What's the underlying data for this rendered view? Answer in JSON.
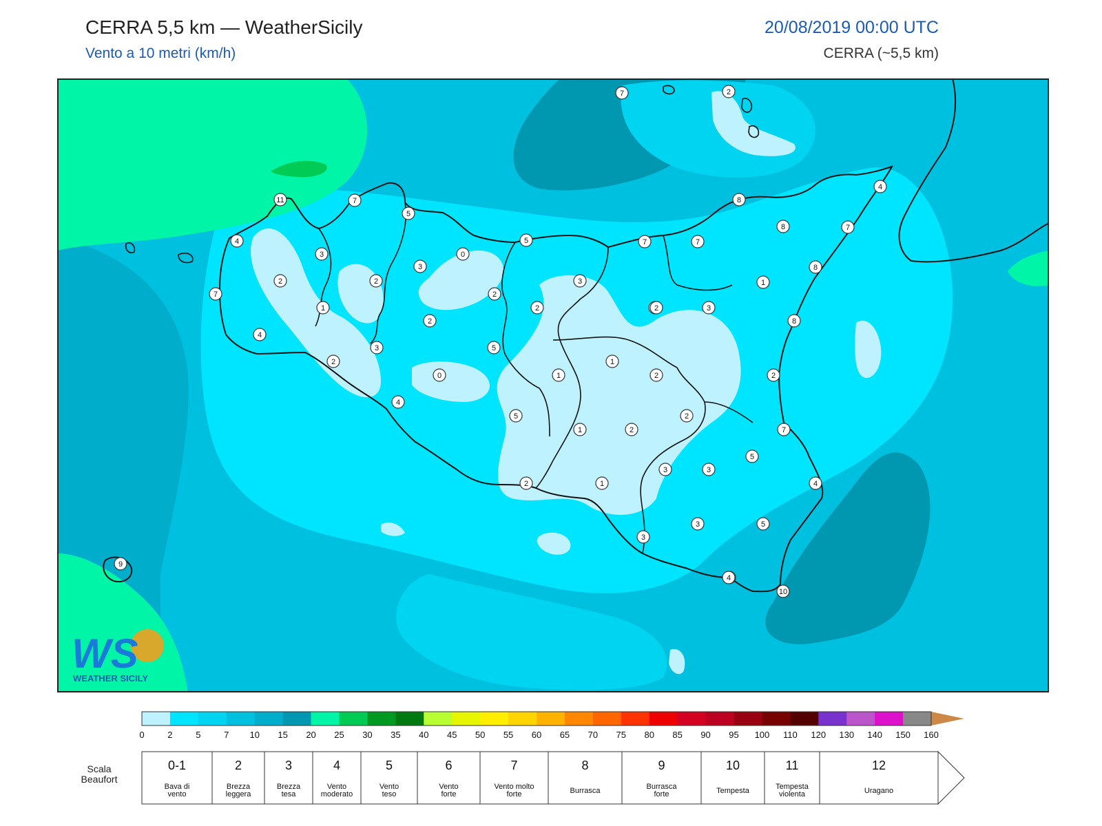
{
  "header": {
    "title": "CERRA 5,5 km — WeatherSicily",
    "subtitle": "Vento a 10 metri (km/h)",
    "datetime": "20/08/2019 00:00 UTC",
    "model": "CERRA (~5,5 km)"
  },
  "logo": {
    "initials": "WS",
    "name": "WEATHER SICILY"
  },
  "colorbar": {
    "ticks": [
      "0",
      "2",
      "5",
      "7",
      "10",
      "15",
      "20",
      "25",
      "30",
      "35",
      "40",
      "45",
      "50",
      "55",
      "60",
      "65",
      "70",
      "75",
      "80",
      "85",
      "90",
      "95",
      "100",
      "110",
      "120",
      "130",
      "140",
      "150",
      "160"
    ],
    "colors": [
      "#bff2ff",
      "#00e5ff",
      "#00d4f0",
      "#00c0e0",
      "#00aecc",
      "#0097b0",
      "#00f5a6",
      "#00cc55",
      "#009922",
      "#007a10",
      "#b8ff33",
      "#e6f500",
      "#ffee00",
      "#ffd500",
      "#ffb300",
      "#ff8800",
      "#ff6600",
      "#ff3300",
      "#ee0000",
      "#d40022",
      "#bb0022",
      "#990011",
      "#770000",
      "#550000",
      "#7733cc",
      "#bb55cc",
      "#dd11cc",
      "#888888",
      "#555555",
      "#000000",
      "#884422",
      "#cc8844"
    ]
  },
  "beaufort": {
    "label": "Scala Beaufort",
    "cells": [
      {
        "num": "0-1",
        "desc": "Bava di vento"
      },
      {
        "num": "2",
        "desc": "Brezza leggera"
      },
      {
        "num": "3",
        "desc": "Brezza tesa"
      },
      {
        "num": "4",
        "desc": "Vento moderato"
      },
      {
        "num": "5",
        "desc": "Vento teso"
      },
      {
        "num": "6",
        "desc": "Vento forte"
      },
      {
        "num": "7",
        "desc": "Vento molto forte"
      },
      {
        "num": "8",
        "desc": "Burrasca"
      },
      {
        "num": "9",
        "desc": "Burrasca forte"
      },
      {
        "num": "10",
        "desc": "Tempesta"
      },
      {
        "num": "11",
        "desc": "Tempesta violenta"
      },
      {
        "num": "12",
        "desc": "Uragano"
      }
    ]
  },
  "stations": [
    "7",
    "2",
    "8",
    "4",
    "11",
    "7",
    "5",
    "4",
    "3",
    "0",
    "5",
    "7",
    "7",
    "8",
    "7",
    "3",
    "2",
    "2",
    "3",
    "8",
    "2",
    "7",
    "1",
    "2",
    "1",
    "2",
    "2",
    "3",
    "2",
    "8",
    "4",
    "2",
    "5",
    "1",
    "1",
    "0",
    "2",
    "2",
    "3",
    "4",
    "5",
    "1",
    "2",
    "2",
    "3",
    "3",
    "7",
    "5",
    "2",
    "1",
    "3",
    "3",
    "5",
    "4",
    "3",
    "4",
    "10",
    "9"
  ],
  "colors": {
    "land_border": "#111111",
    "frame": "#222222"
  }
}
